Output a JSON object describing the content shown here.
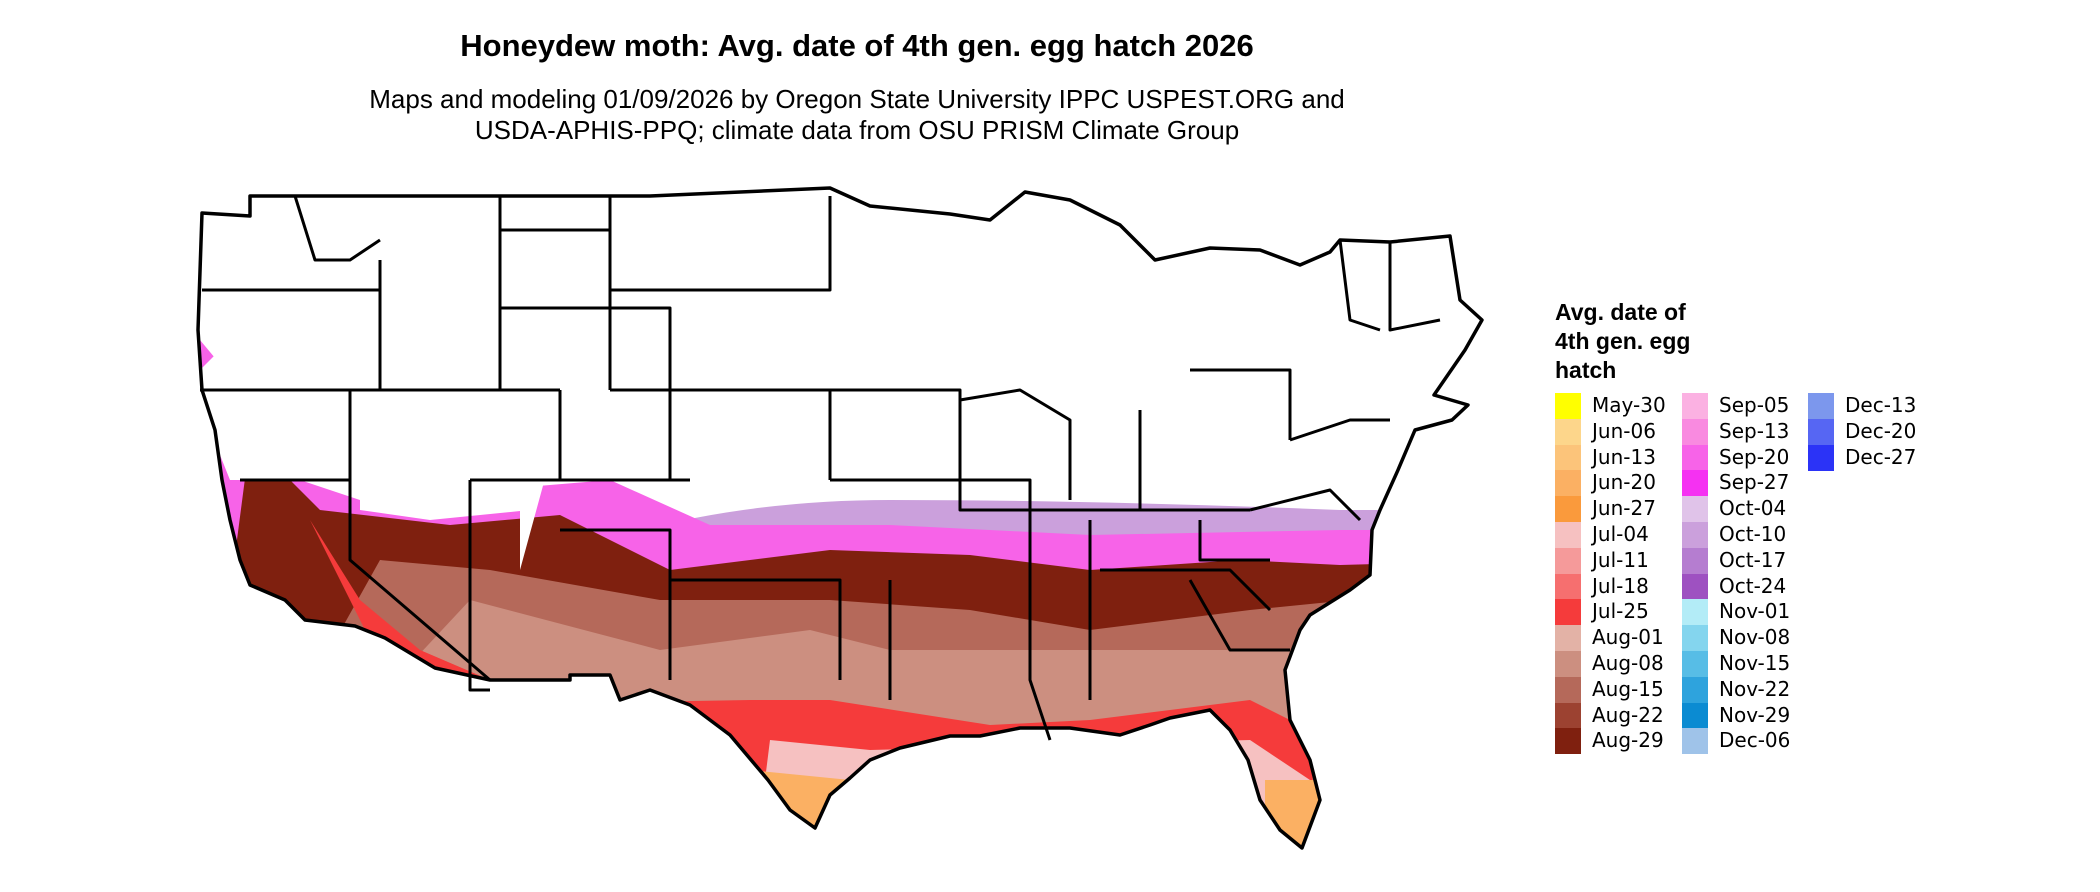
{
  "title": "Honeydew moth: Avg. date of 4th gen. egg hatch 2026",
  "subtitle_line1": "Maps and modeling 01/09/2026 by Oregon State University IPPC USPEST.ORG and",
  "subtitle_line2": "USDA-APHIS-PPQ; climate data from OSU PRISM Climate Group",
  "legend": {
    "title": "Avg. date of 4th gen. egg hatch",
    "title_line1": "Avg. date of",
    "title_line2": "4th gen. egg",
    "title_line3": "hatch",
    "items": [
      {
        "label": "May-30",
        "color": "#ffff00"
      },
      {
        "label": "Jun-06",
        "color": "#fdd68b"
      },
      {
        "label": "Jun-13",
        "color": "#fcc47a"
      },
      {
        "label": "Jun-20",
        "color": "#fbb063"
      },
      {
        "label": "Jun-27",
        "color": "#fa9a3c"
      },
      {
        "label": "Jul-04",
        "color": "#f6c1c1"
      },
      {
        "label": "Jul-11",
        "color": "#f59a9a"
      },
      {
        "label": "Jul-18",
        "color": "#f66f6f"
      },
      {
        "label": "Jul-25",
        "color": "#f53b3b"
      },
      {
        "label": "Aug-01",
        "color": "#e3b2a6"
      },
      {
        "label": "Aug-08",
        "color": "#cc8f80"
      },
      {
        "label": "Aug-15",
        "color": "#b5695a"
      },
      {
        "label": "Aug-22",
        "color": "#9c4231"
      },
      {
        "label": "Aug-29",
        "color": "#7f200f"
      },
      {
        "label": "Sep-05",
        "color": "#fbb1e2"
      },
      {
        "label": "Sep-13",
        "color": "#f98ae0"
      },
      {
        "label": "Sep-20",
        "color": "#f763e8"
      },
      {
        "label": "Sep-27",
        "color": "#f531f2"
      },
      {
        "label": "Oct-04",
        "color": "#e0c3e9"
      },
      {
        "label": "Oct-10",
        "color": "#cba0dc"
      },
      {
        "label": "Oct-17",
        "color": "#b57dd0"
      },
      {
        "label": "Oct-24",
        "color": "#9e51c1"
      },
      {
        "label": "Nov-01",
        "color": "#b3ecf7"
      },
      {
        "label": "Nov-08",
        "color": "#84d5ee"
      },
      {
        "label": "Nov-15",
        "color": "#57bde6"
      },
      {
        "label": "Nov-22",
        "color": "#2ea3dd"
      },
      {
        "label": "Nov-29",
        "color": "#0b8bd2"
      },
      {
        "label": "Dec-06",
        "color": "#9fc3e9"
      },
      {
        "label": "Dec-13",
        "color": "#7c97ed"
      },
      {
        "label": "Dec-20",
        "color": "#5666f3"
      },
      {
        "label": "Dec-27",
        "color": "#2b33f7"
      }
    ]
  }
}
